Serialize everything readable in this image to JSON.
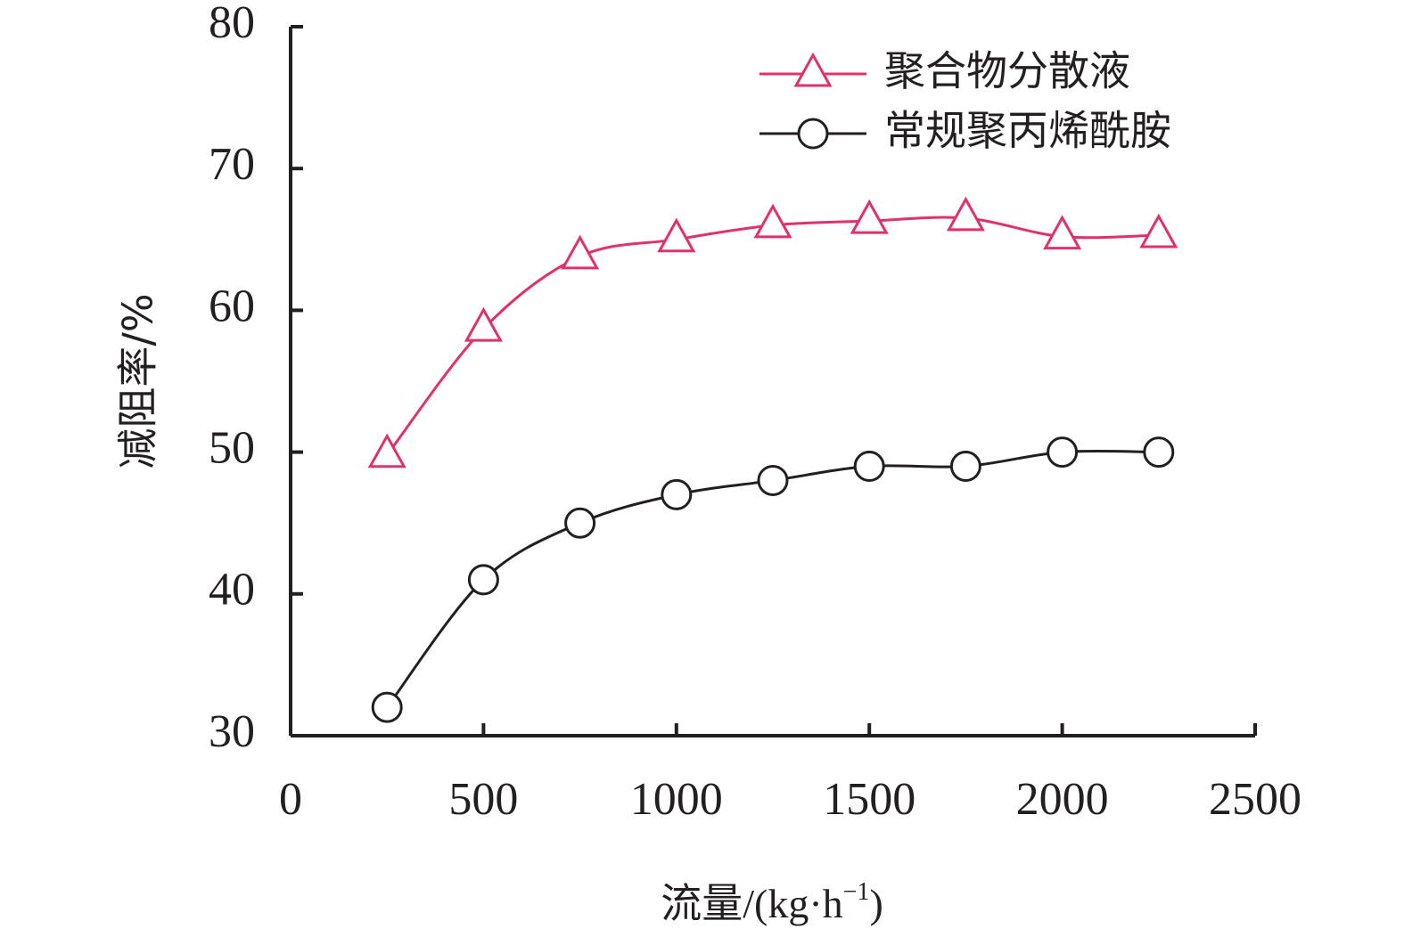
{
  "chart_data": {
    "type": "line",
    "xlabel": "流量/(kg·h⁻¹)",
    "xlabel_parts": {
      "cjk": "流量",
      "unit_open": "/(kg·h",
      "sup": "−1",
      "unit_close": ")"
    },
    "ylabel": "减阻率/%",
    "xlim": [
      0,
      2500
    ],
    "ylim": [
      30,
      80
    ],
    "x_ticks": [
      0,
      500,
      1000,
      1500,
      2000,
      2500
    ],
    "y_ticks": [
      30,
      40,
      50,
      60,
      70,
      80
    ],
    "grid": false,
    "legend_position": "top-right",
    "x": [
      250,
      500,
      750,
      1000,
      1250,
      1500,
      1750,
      2000,
      2250
    ],
    "series": [
      {
        "name": "聚合物分散液",
        "marker": "triangle",
        "color": "#e0306e",
        "values": [
          49.8,
          58.7,
          63.8,
          65.0,
          66.0,
          66.3,
          66.5,
          65.2,
          65.3
        ]
      },
      {
        "name": "常规聚丙烯酰胺",
        "marker": "circle",
        "color": "#231f20",
        "values": [
          32.0,
          41.0,
          45.0,
          47.0,
          48.0,
          49.0,
          49.0,
          50.0,
          50.0
        ]
      }
    ]
  }
}
